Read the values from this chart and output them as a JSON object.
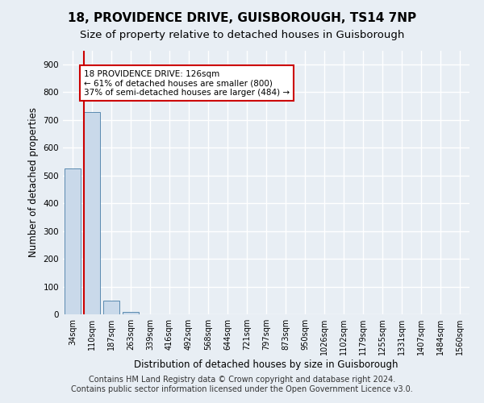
{
  "title1": "18, PROVIDENCE DRIVE, GUISBOROUGH, TS14 7NP",
  "title2": "Size of property relative to detached houses in Guisborough",
  "xlabel": "Distribution of detached houses by size in Guisborough",
  "ylabel": "Number of detached properties",
  "footnote1": "Contains HM Land Registry data © Crown copyright and database right 2024.",
  "footnote2": "Contains public sector information licensed under the Open Government Licence v3.0.",
  "categories": [
    "34sqm",
    "110sqm",
    "187sqm",
    "263sqm",
    "339sqm",
    "416sqm",
    "492sqm",
    "568sqm",
    "644sqm",
    "721sqm",
    "797sqm",
    "873sqm",
    "950sqm",
    "1026sqm",
    "1102sqm",
    "1179sqm",
    "1255sqm",
    "1331sqm",
    "1407sqm",
    "1484sqm",
    "1560sqm"
  ],
  "values": [
    525,
    727,
    50,
    10,
    1,
    0,
    0,
    0,
    0,
    0,
    0,
    0,
    0,
    0,
    0,
    0,
    0,
    0,
    0,
    0,
    0
  ],
  "bar_color": "#c9d9ea",
  "bar_edge_color": "#5a8ab0",
  "property_line_color": "#cc0000",
  "annotation_line1": "18 PROVIDENCE DRIVE: 126sqm",
  "annotation_line2": "← 61% of detached houses are smaller (800)",
  "annotation_line3": "37% of semi-detached houses are larger (484) →",
  "annotation_box_color": "#ffffff",
  "annotation_box_edge": "#cc0000",
  "ylim": [
    0,
    950
  ],
  "yticks": [
    0,
    100,
    200,
    300,
    400,
    500,
    600,
    700,
    800,
    900
  ],
  "background_color": "#e8eef4",
  "grid_color": "#ffffff",
  "title1_fontsize": 11,
  "title2_fontsize": 9.5,
  "tick_fontsize": 7,
  "ylabel_fontsize": 8.5,
  "xlabel_fontsize": 8.5,
  "footnote_fontsize": 7
}
